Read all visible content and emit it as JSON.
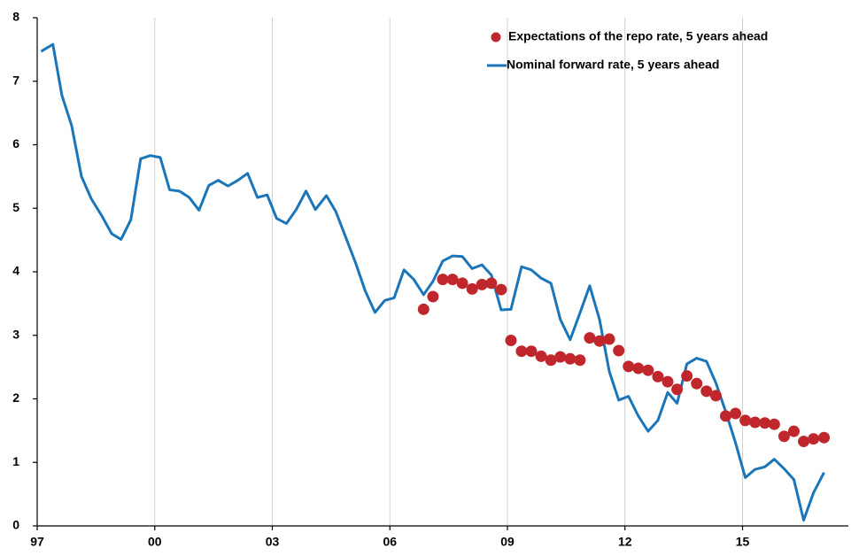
{
  "chart_data": {
    "type": "line",
    "xlim": [
      1997,
      2017.7
    ],
    "ylim": [
      0,
      8
    ],
    "xticks": [
      {
        "value": 1997,
        "label": "97"
      },
      {
        "value": 2000,
        "label": "00"
      },
      {
        "value": 2003,
        "label": "03"
      },
      {
        "value": 2006,
        "label": "06"
      },
      {
        "value": 2009,
        "label": "09"
      },
      {
        "value": 2012,
        "label": "12"
      },
      {
        "value": 2015,
        "label": "15"
      }
    ],
    "yticks": [
      0,
      1,
      2,
      3,
      4,
      5,
      6,
      7,
      8
    ],
    "grid": "x",
    "legend": "upper right",
    "series": [
      {
        "name": "Expectations of the repo rate, 5 years ahead",
        "color": "#c0272d",
        "mark": "dot",
        "x": [
          2006.86,
          2007.1,
          2007.35,
          2007.6,
          2007.85,
          2008.1,
          2008.35,
          2008.59,
          2008.84,
          2009.09,
          2009.36,
          2009.61,
          2009.86,
          2010.11,
          2010.35,
          2010.6,
          2010.85,
          2011.1,
          2011.35,
          2011.6,
          2011.84,
          2012.09,
          2012.34,
          2012.59,
          2012.84,
          2013.09,
          2013.33,
          2013.58,
          2013.83,
          2014.08,
          2014.32,
          2014.57,
          2014.82,
          2015.07,
          2015.32,
          2015.57,
          2015.81,
          2016.06,
          2016.31,
          2016.56,
          2016.81,
          2017.08
        ],
        "values": [
          3.41,
          3.61,
          3.88,
          3.88,
          3.82,
          3.73,
          3.8,
          3.82,
          3.72,
          2.92,
          2.75,
          2.75,
          2.67,
          2.61,
          2.66,
          2.63,
          2.61,
          2.96,
          2.91,
          2.94,
          2.76,
          2.51,
          2.48,
          2.45,
          2.35,
          2.27,
          2.15,
          2.36,
          2.24,
          2.12,
          2.05,
          1.73,
          1.77,
          1.66,
          1.63,
          1.62,
          1.6,
          1.41,
          1.49,
          1.33,
          1.37,
          1.39
        ]
      },
      {
        "name": "Nominal forward rate, 5 years ahead",
        "color": "#1b75b9",
        "mark": "line",
        "x": [
          1997.1,
          1997.4,
          1997.63,
          1997.88,
          1998.13,
          1998.38,
          1998.65,
          1998.9,
          1999.14,
          1999.39,
          1999.64,
          1999.89,
          2000.14,
          2000.38,
          2000.63,
          2000.88,
          2001.13,
          2001.38,
          2001.62,
          2001.87,
          2002.12,
          2002.37,
          2002.62,
          2002.87,
          2003.11,
          2003.36,
          2003.61,
          2003.86,
          2004.1,
          2004.38,
          2004.62,
          2004.87,
          2005.12,
          2005.37,
          2005.62,
          2005.87,
          2006.11,
          2006.36,
          2006.61,
          2006.86,
          2007.1,
          2007.35,
          2007.6,
          2007.85,
          2008.1,
          2008.35,
          2008.59,
          2008.84,
          2009.09,
          2009.36,
          2009.61,
          2009.86,
          2010.11,
          2010.35,
          2010.6,
          2010.85,
          2011.1,
          2011.35,
          2011.6,
          2011.84,
          2012.09,
          2012.34,
          2012.59,
          2012.84,
          2013.09,
          2013.33,
          2013.58,
          2013.83,
          2014.08,
          2014.32,
          2014.57,
          2014.82,
          2015.07,
          2015.32,
          2015.57,
          2015.81,
          2016.06,
          2016.31,
          2016.56,
          2016.81,
          2017.08
        ],
        "values": [
          7.47,
          7.58,
          6.78,
          6.3,
          5.5,
          5.15,
          4.88,
          4.6,
          4.51,
          4.82,
          5.78,
          5.83,
          5.8,
          5.29,
          5.27,
          5.17,
          4.97,
          5.36,
          5.44,
          5.35,
          5.44,
          5.55,
          5.17,
          5.21,
          4.84,
          4.76,
          4.98,
          5.27,
          4.98,
          5.2,
          4.95,
          4.55,
          4.15,
          3.7,
          3.36,
          3.55,
          3.59,
          4.03,
          3.88,
          3.64,
          3.85,
          4.17,
          4.25,
          4.24,
          4.05,
          4.11,
          3.95,
          3.4,
          3.41,
          4.08,
          4.03,
          3.9,
          3.82,
          3.25,
          2.93,
          3.35,
          3.78,
          3.25,
          2.43,
          1.98,
          2.04,
          1.73,
          1.49,
          1.66,
          2.1,
          1.93,
          2.55,
          2.64,
          2.59,
          2.25,
          1.8,
          1.31,
          0.76,
          0.89,
          0.93,
          1.05,
          0.9,
          0.73,
          0.09,
          0.52,
          0.84
        ]
      }
    ]
  }
}
